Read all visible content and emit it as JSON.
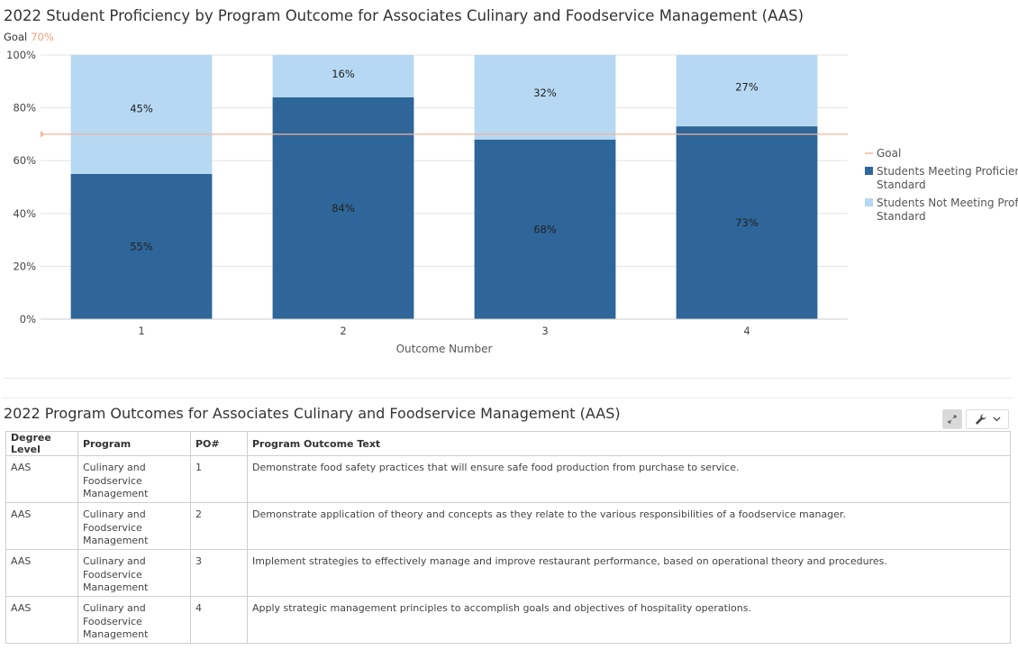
{
  "chart": {
    "title": "2022 Student Proficiency by Program Outcome for Associates Culinary and Foodservice Management (AAS)",
    "goal_label": "Goal",
    "goal_value_label": "70%"
  },
  "chart_data": {
    "type": "bar",
    "stacked": true,
    "title": "2022 Student Proficiency by Program Outcome for Associates Culinary and Foodservice Management (AAS)",
    "xlabel": "Outcome Number",
    "ylabel": "",
    "categories": [
      "1",
      "2",
      "3",
      "4"
    ],
    "series": [
      {
        "name": "Students Meeting Proficiency Standard",
        "color": "#2e6699",
        "values": [
          55,
          84,
          68,
          73
        ]
      },
      {
        "name": "Students Not Meeting Proficiency Standard",
        "color": "#b6d8f2",
        "values": [
          45,
          16,
          32,
          27
        ]
      }
    ],
    "goal": {
      "name": "Goal",
      "value": 70,
      "color": "#f5b49a"
    },
    "ylim": [
      0,
      100
    ],
    "yticks": [
      "0%",
      "20%",
      "40%",
      "60%",
      "80%",
      "100%"
    ],
    "grid": true,
    "legend_position": "right"
  },
  "table": {
    "title": "2022 Program Outcomes for Associates Culinary and Foodservice Management (AAS)",
    "headers": [
      "Degree Level",
      "Program",
      "PO#",
      "Program Outcome Text"
    ],
    "rows": [
      [
        "AAS",
        "Culinary and\nFoodservice\nManagement",
        "1",
        "Demonstrate food safety practices that will ensure safe food production from purchase to service."
      ],
      [
        "AAS",
        "Culinary and\nFoodservice\nManagement",
        "2",
        "Demonstrate application of theory and concepts as they relate to the various responsibilities of a foodservice manager."
      ],
      [
        "AAS",
        "Culinary and\nFoodservice\nManagement",
        "3",
        "Implement strategies to effectively manage and improve restaurant performance, based on operational theory and procedures."
      ],
      [
        "AAS",
        "Culinary and\nFoodservice\nManagement",
        "4",
        "Apply strategic management principles to accomplish goals and objectives of hospitality operations."
      ]
    ]
  },
  "toolbar": {
    "expand_icon": "expand-icon",
    "wrench_icon": "wrench-icon",
    "menu_icon": "chevron-down-icon"
  }
}
